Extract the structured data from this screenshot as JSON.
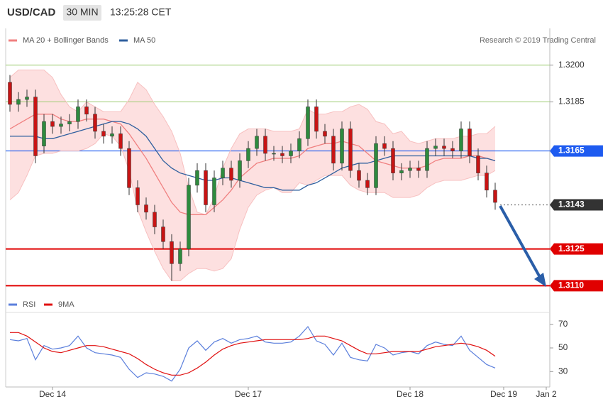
{
  "header": {
    "symbol": "USD/CAD",
    "timeframe": "30 MIN",
    "time": "13:25:28 CET"
  },
  "credit": "Research © 2019 Trading Central",
  "chart_data": [
    {
      "type": "candlestick",
      "categories": [
        null,
        null,
        null,
        null,
        null,
        "Dec 14",
        null,
        null,
        null,
        null,
        null,
        null,
        null,
        null,
        null,
        null,
        null,
        null,
        null,
        null,
        null,
        null,
        null,
        null,
        null,
        null,
        null,
        null,
        "Dec 17",
        null,
        null,
        null,
        null,
        null,
        null,
        null,
        null,
        null,
        null,
        null,
        null,
        null,
        null,
        null,
        null,
        null,
        null,
        "Dec 18",
        null,
        null,
        null,
        null,
        null,
        null,
        null,
        null,
        null,
        null,
        "Dec 19",
        null,
        null,
        null,
        null,
        "Jan 2"
      ],
      "open": [
        1.3193,
        1.3184,
        1.3186,
        1.3187,
        1.3167,
        1.3177,
        1.3175,
        1.3176,
        1.3177,
        1.3183,
        1.318,
        1.3173,
        1.3171,
        1.3172,
        1.3166,
        1.315,
        1.3143,
        1.314,
        1.3134,
        1.3128,
        1.3119,
        1.3125,
        1.3151,
        1.3157,
        1.3143,
        1.3154,
        1.3158,
        1.3153,
        1.3161,
        1.3166,
        1.3171,
        1.3164,
        1.3164,
        1.3163,
        1.3165,
        1.317,
        1.3183,
        1.3173,
        1.3171,
        1.316,
        1.3174,
        1.3157,
        1.3153,
        1.315,
        1.3168,
        1.3166,
        1.3156,
        1.3157,
        1.3158,
        1.3157,
        1.3166,
        1.3167,
        1.3166,
        1.3165,
        1.3174,
        1.3163,
        1.3156,
        1.3149,
        null,
        null,
        null,
        null,
        null,
        null
      ],
      "high": [
        1.3196,
        1.3189,
        1.319,
        1.319,
        1.318,
        1.318,
        1.3179,
        1.318,
        1.3186,
        1.3186,
        1.3183,
        1.3176,
        1.3175,
        1.3175,
        1.3169,
        1.3153,
        1.3146,
        1.3143,
        1.3137,
        1.3131,
        1.3128,
        1.3154,
        1.316,
        1.316,
        1.3157,
        1.3161,
        1.3161,
        1.3164,
        1.3169,
        1.3174,
        1.3174,
        1.3167,
        1.3167,
        1.3168,
        1.3173,
        1.3186,
        1.3186,
        1.3176,
        1.3174,
        1.3177,
        1.3177,
        1.316,
        1.3156,
        1.3171,
        1.3171,
        1.3169,
        1.316,
        1.3161,
        1.3161,
        1.3169,
        1.317,
        1.317,
        1.3169,
        1.3177,
        1.3177,
        1.3166,
        1.3159,
        1.3152,
        null,
        null,
        null,
        null,
        null,
        null
      ],
      "low": [
        1.3181,
        1.3181,
        1.3183,
        1.316,
        1.3164,
        1.3172,
        1.3172,
        1.3173,
        1.3174,
        1.3177,
        1.317,
        1.3168,
        1.3168,
        1.3163,
        1.3147,
        1.314,
        1.3137,
        1.3131,
        1.3125,
        1.3112,
        1.3116,
        1.3122,
        1.3148,
        1.314,
        1.314,
        1.3151,
        1.315,
        1.315,
        1.3158,
        1.3163,
        1.3161,
        1.3161,
        1.316,
        1.316,
        1.3162,
        1.3167,
        1.317,
        1.3168,
        1.3157,
        1.3157,
        1.3154,
        1.315,
        1.3147,
        1.3147,
        1.3163,
        1.3153,
        1.3153,
        1.3154,
        1.3154,
        1.3154,
        1.3163,
        1.3163,
        1.3162,
        1.3162,
        1.316,
        1.3153,
        1.3146,
        1.3141,
        null,
        null,
        null,
        null,
        null,
        null
      ],
      "close": [
        1.3184,
        1.3186,
        1.3187,
        1.3163,
        1.3177,
        1.3175,
        1.3176,
        1.3177,
        1.3183,
        1.318,
        1.3173,
        1.3171,
        1.3172,
        1.3166,
        1.315,
        1.3143,
        1.314,
        1.3134,
        1.3128,
        1.3119,
        1.3125,
        1.3151,
        1.3157,
        1.3143,
        1.3154,
        1.3158,
        1.3153,
        1.3161,
        1.3166,
        1.3171,
        1.3164,
        1.3164,
        1.3163,
        1.3165,
        1.317,
        1.3183,
        1.3173,
        1.3171,
        1.316,
        1.3174,
        1.3157,
        1.3153,
        1.315,
        1.3168,
        1.3166,
        1.3156,
        1.3157,
        1.3158,
        1.3157,
        1.3166,
        1.3167,
        1.3166,
        1.3165,
        1.3174,
        1.3163,
        1.3156,
        1.3149,
        1.3144,
        null,
        null,
        null,
        null,
        null,
        null
      ],
      "up_color": "#2e8b3e",
      "down_color": "#c81414",
      "series": [
        {
          "name": "MA 20 + Bollinger Bands",
          "color": "#f08080",
          "band_color": "#fde0e0",
          "values": [
            1.3174,
            1.3176,
            1.3178,
            1.318,
            1.318,
            1.318,
            1.3178,
            1.3177,
            1.3177,
            1.3178,
            1.3178,
            1.3178,
            1.3177,
            1.3176,
            1.3172,
            1.3167,
            1.3162,
            1.3156,
            1.315,
            1.3144,
            1.314,
            1.3139,
            1.3139,
            1.3139,
            1.3142,
            1.3145,
            1.3149,
            1.3154,
            1.3157,
            1.316,
            1.3161,
            1.3162,
            1.3162,
            1.3162,
            1.3163,
            1.3166,
            1.3167,
            1.3168,
            1.3168,
            1.3169,
            1.3168,
            1.3167,
            1.3164,
            1.3161,
            1.316,
            1.3159,
            1.3158,
            1.3158,
            1.3158,
            1.3159,
            1.3161,
            1.3162,
            1.3162,
            1.3162,
            1.3163,
            1.3163,
            1.3162,
            1.3161,
            null,
            null,
            null,
            null,
            null,
            null
          ],
          "upper": [
            1.3195,
            1.3198,
            1.3198,
            1.3198,
            1.3198,
            1.3195,
            1.3188,
            1.3183,
            1.3181,
            1.3185,
            1.3183,
            1.3181,
            1.3181,
            1.3181,
            1.3186,
            1.3193,
            1.319,
            1.3184,
            1.3179,
            1.3173,
            1.3164,
            1.315,
            1.314,
            1.3139,
            1.3146,
            1.3158,
            1.3166,
            1.3172,
            1.3174,
            1.3174,
            1.3174,
            1.3173,
            1.3173,
            1.3173,
            1.3174,
            1.3182,
            1.318,
            1.318,
            1.3181,
            1.3181,
            1.3183,
            1.3184,
            1.3182,
            1.3177,
            1.3176,
            1.3172,
            1.3173,
            1.3169,
            1.3168,
            1.3169,
            1.317,
            1.317,
            1.317,
            1.3171,
            1.3171,
            1.3172,
            1.3172,
            1.3175,
            null,
            null,
            null,
            null,
            null,
            null
          ],
          "lower": [
            1.3145,
            1.3148,
            1.3155,
            1.3163,
            1.3164,
            1.3164,
            1.3165,
            1.3165,
            1.3165,
            1.3166,
            1.3168,
            1.3172,
            1.3171,
            1.3167,
            1.3157,
            1.3141,
            1.3132,
            1.3124,
            1.3117,
            1.3112,
            1.3112,
            1.3115,
            1.3117,
            1.3117,
            1.3116,
            1.3117,
            1.3121,
            1.3133,
            1.3142,
            1.3147,
            1.3149,
            1.315,
            1.3148,
            1.3148,
            1.3152,
            1.3151,
            1.3153,
            1.3155,
            1.3155,
            1.3155,
            1.3151,
            1.3149,
            1.3148,
            1.3148,
            1.3148,
            1.3146,
            1.3146,
            1.3146,
            1.3147,
            1.315,
            1.3152,
            1.3153,
            1.3153,
            1.3153,
            1.3154,
            1.3155,
            1.3155,
            1.3157,
            null,
            null,
            null,
            null,
            null,
            null
          ]
        },
        {
          "name": "MA 50",
          "color": "#2f5f9e",
          "values": [
            1.3171,
            1.3171,
            1.3171,
            1.3171,
            1.317,
            1.317,
            1.3171,
            1.3172,
            1.3173,
            1.3174,
            1.3175,
            1.3176,
            1.3177,
            1.3177,
            1.3176,
            1.3174,
            1.3171,
            1.3166,
            1.3161,
            1.3158,
            1.3156,
            1.3155,
            1.3154,
            1.3153,
            1.3153,
            1.3154,
            1.3154,
            1.3153,
            1.3152,
            1.3151,
            1.315,
            1.315,
            1.3149,
            1.3149,
            1.3149,
            1.3151,
            1.3152,
            1.3154,
            1.3156,
            1.3158,
            1.3159,
            1.316,
            1.316,
            1.3161,
            1.3162,
            1.3163,
            1.3163,
            1.3163,
            1.3163,
            1.3163,
            1.3163,
            1.3163,
            1.3163,
            1.3163,
            1.3163,
            1.3162,
            1.3162,
            1.3161,
            null,
            null,
            null,
            null,
            null,
            null
          ]
        }
      ],
      "ylim": [
        1.3102,
        1.3215
      ],
      "yticks": [
        {
          "value": 1.32,
          "label": "1.3200"
        },
        {
          "value": 1.3185,
          "label": "1.3185"
        }
      ],
      "grid": true,
      "grid_color": "#9ccc70",
      "levels": [
        {
          "value": 1.3165,
          "label": "1.3165",
          "color": "#1e5bf0",
          "style": "solid"
        },
        {
          "value": 1.3143,
          "label": "1.3143",
          "color": "#333333",
          "style": "dotted"
        },
        {
          "value": 1.3125,
          "label": "1.3125",
          "color": "#e00000",
          "style": "solid"
        },
        {
          "value": 1.311,
          "label": "1.3110",
          "color": "#e00000",
          "style": "solid"
        }
      ]
    },
    {
      "type": "line",
      "series": [
        {
          "name": "RSI",
          "color": "#5b7fdc",
          "values": [
            57,
            56,
            58,
            40,
            52,
            49,
            50,
            52,
            60,
            50,
            46,
            45,
            44,
            42,
            32,
            25,
            29,
            28,
            26,
            22,
            32,
            50,
            56,
            48,
            55,
            58,
            54,
            57,
            58,
            60,
            55,
            54,
            54,
            55,
            60,
            68,
            56,
            53,
            44,
            54,
            42,
            40,
            39,
            53,
            50,
            44,
            46,
            47,
            45,
            52,
            55,
            53,
            52,
            60,
            48,
            42,
            36,
            33,
            null,
            null,
            null,
            null,
            null,
            null
          ]
        },
        {
          "name": "9MA",
          "color": "#e01010",
          "values": [
            63,
            63,
            60,
            55,
            50,
            47,
            46,
            48,
            50,
            52,
            52,
            51,
            49,
            47,
            45,
            41,
            36,
            32,
            29,
            27,
            27,
            29,
            33,
            38,
            44,
            49,
            52,
            54,
            55,
            56,
            57,
            57,
            57,
            57,
            57,
            58,
            60,
            60,
            58,
            56,
            52,
            48,
            45,
            45,
            46,
            47,
            47,
            47,
            47,
            49,
            51,
            52,
            53,
            54,
            53,
            51,
            48,
            43,
            null,
            null,
            null,
            null,
            null,
            null
          ]
        }
      ],
      "ylim": [
        17,
        77
      ],
      "yticks": [
        70,
        50,
        30
      ],
      "grid": false
    }
  ]
}
